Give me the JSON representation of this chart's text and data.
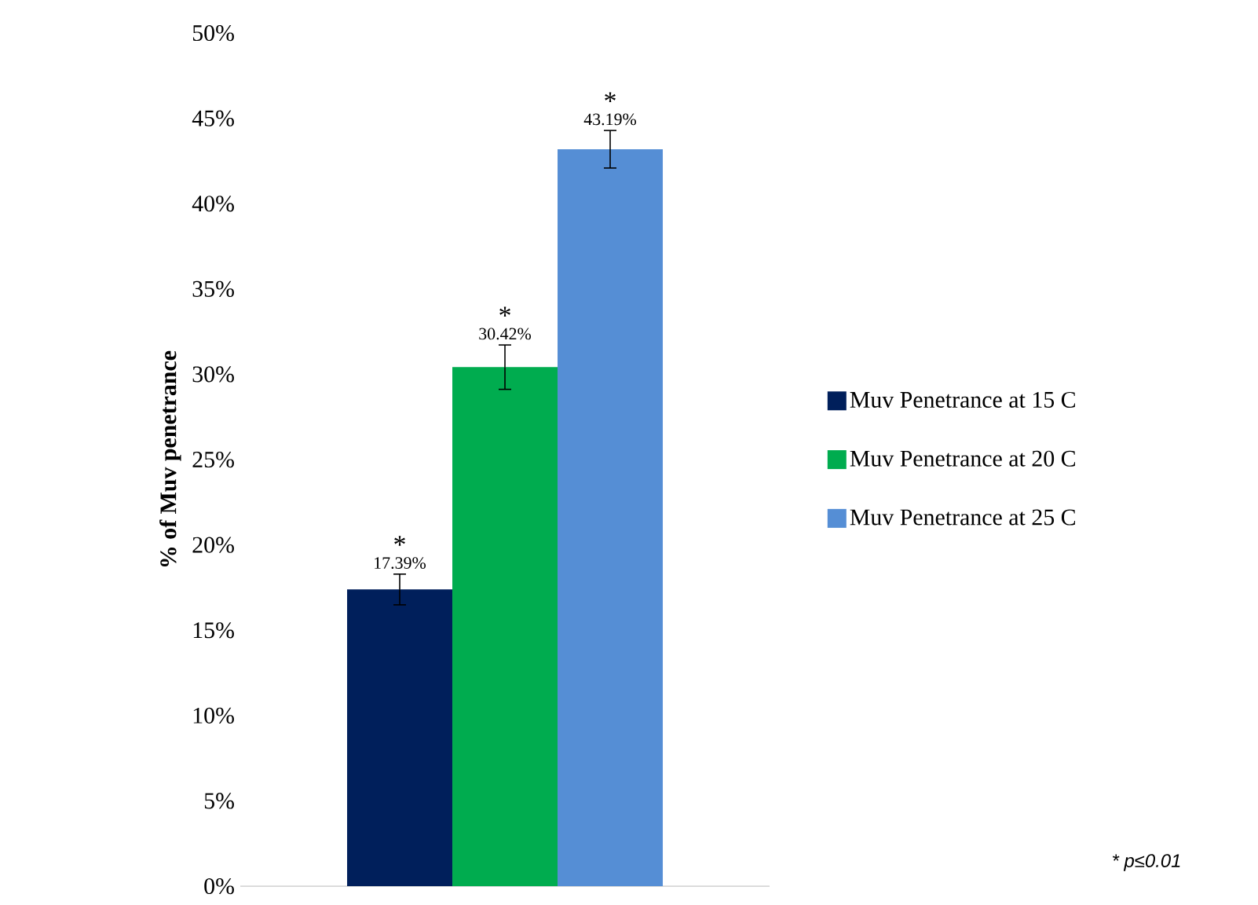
{
  "chart_data": {
    "type": "bar",
    "ylabel": "% of Muv penetrance",
    "categories": [
      null
    ],
    "series": [
      {
        "name": "Muv Penetrance at 15 C",
        "color": "#001f5b",
        "values": [
          17.39
        ],
        "errors": [
          0.9
        ],
        "value_labels": [
          "17.39%"
        ]
      },
      {
        "name": "Muv Penetrance at 20 C",
        "color": "#00ac4f",
        "values": [
          30.42
        ],
        "errors": [
          1.3
        ],
        "value_labels": [
          "30.42%"
        ]
      },
      {
        "name": "Muv Penetrance at 25 C",
        "color": "#558ed5",
        "values": [
          43.19
        ],
        "errors": [
          1.1
        ],
        "value_labels": [
          "43.19%"
        ]
      }
    ],
    "ylim": [
      0,
      50
    ],
    "yticks": [
      {
        "value": 0,
        "label": "0%"
      },
      {
        "value": 5,
        "label": "5%"
      },
      {
        "value": 10,
        "label": "10%"
      },
      {
        "value": 15,
        "label": "15%"
      },
      {
        "value": 20,
        "label": "20%"
      },
      {
        "value": 25,
        "label": "25%"
      },
      {
        "value": 30,
        "label": "30%"
      },
      {
        "value": 35,
        "label": "35%"
      },
      {
        "value": 40,
        "label": "40%"
      },
      {
        "value": 45,
        "label": "45%"
      },
      {
        "value": 50,
        "label": "50%"
      }
    ],
    "annotations": [
      "*",
      "*",
      "*",
      "* p≤0.01"
    ],
    "legend": "right",
    "grid": false
  }
}
